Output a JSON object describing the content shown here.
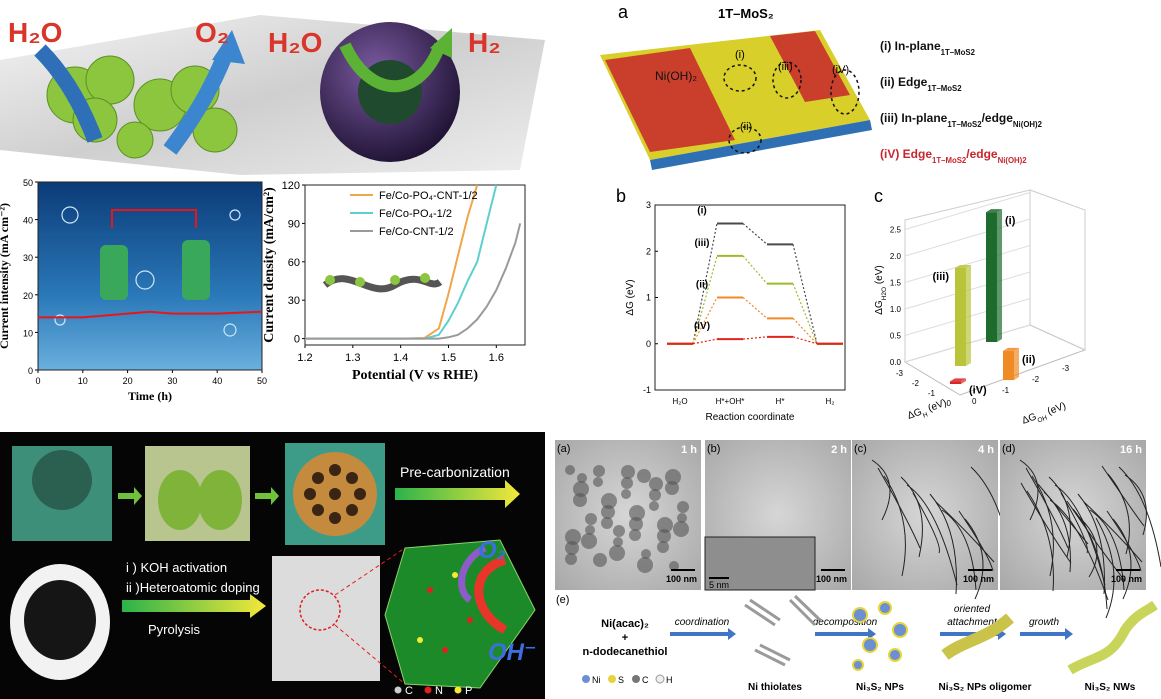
{
  "top_left": {
    "labels": {
      "water_1": "H₂O",
      "oxygen": "O₂",
      "water_2": "H₂O",
      "hydrogen": "H₂"
    }
  },
  "top_right": {
    "panel_a": {
      "letter": "a",
      "title": "1T–MoS₂",
      "material": "Ni(OH)₂",
      "site_labels": [
        "(i)",
        "(ii)",
        "(iii)",
        "(iV)"
      ],
      "legend": [
        [
          "(i) In-plane",
          "1T–MoS2"
        ],
        [
          "(ii) Edge",
          "1T–MoS2"
        ],
        [
          "(iii) In-plane",
          "1T–MoS2",
          "/edge",
          "Ni(OH)2"
        ],
        [
          "(iV) Edge",
          "1T–MoS2",
          "/edge",
          "Ni(OH)2"
        ]
      ]
    },
    "panel_b_letter": "b",
    "panel_c_letter": "c"
  },
  "bottom_left": {
    "steps": [
      "Pre-carbonization",
      "i ) KOH activation",
      "ii )Heteroatomic doping",
      "Pyrolysis"
    ],
    "species": [
      "O₂",
      "OH⁻"
    ],
    "legend": [
      "C",
      "N",
      "P"
    ]
  },
  "bottom_right": {
    "panels": [
      {
        "letter": "(a)",
        "time": "1 h",
        "scale": "100 nm"
      },
      {
        "letter": "(b)",
        "time": "2 h",
        "scale": "100 nm"
      },
      {
        "letter": "(c)",
        "time": "4 h",
        "scale": "100 nm"
      },
      {
        "letter": "(d)",
        "time": "16 h",
        "scale": "100 nm"
      }
    ],
    "inset_scale": "5 nm",
    "scheme": {
      "letter": "(e)",
      "reactants": [
        "Ni(acac)₂",
        "+",
        "n-dodecanethiol"
      ],
      "steps": [
        [
          "coordination"
        ],
        [
          "decomposition"
        ],
        [
          "oriented",
          "attachment"
        ],
        [
          "growth"
        ]
      ],
      "products": [
        "Ni thiolates",
        "Ni₃S₂ NPs",
        "Ni₃S₂ NPs oligomer",
        "Ni₃S₂ NWs"
      ],
      "legend": [
        "Ni",
        "S",
        "C",
        "H"
      ]
    }
  },
  "chart_data": [
    {
      "type": "line",
      "ylabel": "Current intensity (mA cm⁻²)",
      "xlabel": "Time (h)",
      "x": [
        0,
        10,
        20,
        25,
        30,
        40,
        50
      ],
      "series": [
        {
          "color": "#e8161b",
          "values": [
            14,
            14,
            15,
            15.5,
            15,
            15,
            15.5
          ]
        }
      ],
      "xlim": [
        0,
        50
      ],
      "ylim": [
        0,
        50
      ],
      "xticks": [
        0,
        10,
        20,
        30,
        40,
        50
      ],
      "yticks": [
        0,
        10,
        20,
        30,
        40,
        50
      ]
    },
    {
      "type": "line",
      "ylabel": "Current density (mA/cm²)",
      "xlabel": "Potential (V vs RHE)",
      "x": [
        1.2,
        1.3,
        1.4,
        1.45,
        1.48,
        1.5,
        1.52,
        1.54,
        1.56,
        1.58,
        1.6,
        1.62,
        1.64,
        1.65
      ],
      "series": [
        {
          "name": "Fe/Co-PO₄-CNT-1/2",
          "color": "#f0a64a",
          "values": [
            0,
            0,
            0,
            0.5,
            8,
            35,
            65,
            95,
            120,
            null,
            null,
            null,
            null,
            null
          ]
        },
        {
          "name": "Fe/Co-PO₄-1/2",
          "color": "#5ecfd0",
          "values": [
            0,
            0,
            0,
            0,
            3,
            14,
            28,
            45,
            60,
            90,
            120,
            null,
            null,
            null
          ]
        },
        {
          "name": "Fe/Co-CNT-1/2",
          "color": "#9a9a9a",
          "values": [
            0,
            0,
            0,
            0,
            0,
            1,
            3,
            8,
            15,
            25,
            38,
            55,
            75,
            90
          ]
        }
      ],
      "xlim": [
        1.2,
        1.66
      ],
      "ylim": [
        -5,
        120
      ],
      "xticks": [
        1.2,
        1.3,
        1.4,
        1.5,
        1.6
      ],
      "yticks": [
        0,
        30,
        60,
        90,
        120
      ]
    },
    {
      "type": "energy",
      "ylabel": "ΔG (eV)",
      "xlabel": "Reaction coordinate",
      "categories": [
        "H₂O",
        "H*+OH*",
        "H*",
        "H₂"
      ],
      "series": [
        {
          "name": "(i)",
          "color": "#4a4a4a",
          "values": [
            0,
            2.6,
            2.15,
            0
          ]
        },
        {
          "name": "(iii)",
          "color": "#9bbb2a",
          "values": [
            0,
            1.9,
            1.3,
            0
          ]
        },
        {
          "name": "(ii)",
          "color": "#f08a24",
          "values": [
            0,
            1.0,
            0.55,
            0
          ]
        },
        {
          "name": "(iV)",
          "color": "#e0251b",
          "values": [
            0,
            0.1,
            0.15,
            0
          ]
        }
      ],
      "ylim": [
        -1,
        3
      ],
      "yticks": [
        -1,
        0,
        1,
        2,
        3
      ]
    },
    {
      "type": "bar3d",
      "categories": [
        "(i)",
        "(iii)",
        "(ii)",
        "(iV)"
      ],
      "values": [
        2.45,
        1.85,
        0.55,
        0.05
      ],
      "colors": [
        "#1e6b2e",
        "#b9c43a",
        "#f08a24",
        "#d8252a"
      ],
      "ylabel": [
        "ΔG",
        "H2O",
        " (eV)"
      ],
      "xlabel": [
        "ΔG",
        "H",
        " (eV)"
      ],
      "zlabel": [
        "ΔG",
        "OH",
        " (eV)"
      ],
      "ylim": [
        0,
        2.7
      ],
      "yticks": [
        {
          "value": 0,
          "label": "0.0"
        },
        0.5,
        {
          "value": 1,
          "label": "1.0"
        },
        1.5,
        {
          "value": 2,
          "label": "2.0"
        },
        2.5
      ],
      "xticks": [
        -3,
        -2,
        -1,
        0
      ],
      "zticks": [
        0,
        -1,
        -2,
        -3
      ]
    }
  ]
}
